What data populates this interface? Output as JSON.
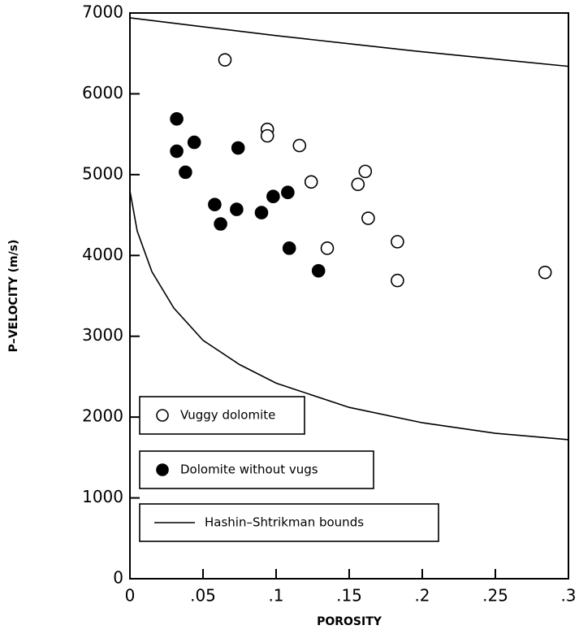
{
  "chart_data": {
    "type": "scatter",
    "xlabel": "POROSITY",
    "ylabel": "P–VELOCITY (m/s)",
    "xlim": [
      0,
      0.3
    ],
    "ylim": [
      0,
      7000
    ],
    "xticks": [
      {
        "value": 0,
        "label": "0"
      },
      {
        "value": 0.05,
        "label": ".05"
      },
      {
        "value": 0.1,
        "label": ".1"
      },
      {
        "value": 0.15,
        "label": ".15"
      },
      {
        "value": 0.2,
        "label": ".2"
      },
      {
        "value": 0.25,
        "label": ".25"
      },
      {
        "value": 0.3,
        "label": ".3"
      }
    ],
    "yticks": [
      0,
      1000,
      2000,
      3000,
      4000,
      5000,
      6000,
      7000
    ],
    "series": [
      {
        "name": "Vuggy dolomite",
        "marker": "open",
        "color": "#000000",
        "x": [
          0.065,
          0.094,
          0.094,
          0.116,
          0.124,
          0.156,
          0.161,
          0.163,
          0.135,
          0.183,
          0.183,
          0.284
        ],
        "values": [
          6420,
          5560,
          5480,
          5360,
          4910,
          4880,
          5040,
          4460,
          4090,
          4170,
          3690,
          3790
        ]
      },
      {
        "name": "Dolomite without vugs",
        "marker": "filled",
        "color": "#000000",
        "x": [
          0.032,
          0.032,
          0.044,
          0.038,
          0.074,
          0.058,
          0.062,
          0.073,
          0.09,
          0.098,
          0.108,
          0.109,
          0.129
        ],
        "values": [
          5690,
          5290,
          5400,
          5030,
          5330,
          4630,
          4390,
          4570,
          4530,
          4730,
          4780,
          4090,
          3810
        ]
      },
      {
        "name": "Hashin–Shtrikman bounds",
        "marker": "line",
        "color": "#000000",
        "x": [
          0,
          0.05,
          0.1,
          0.15,
          0.2,
          0.25,
          0.3,
          null,
          0,
          0.005,
          0.015,
          0.03,
          0.05,
          0.075,
          0.1,
          0.15,
          0.2,
          0.25,
          0.3
        ],
        "values": [
          6940,
          6830,
          6720,
          6620,
          6520,
          6430,
          6340,
          null,
          4800,
          4300,
          3800,
          3350,
          2950,
          2650,
          2420,
          2120,
          1930,
          1800,
          1720
        ]
      }
    ]
  }
}
